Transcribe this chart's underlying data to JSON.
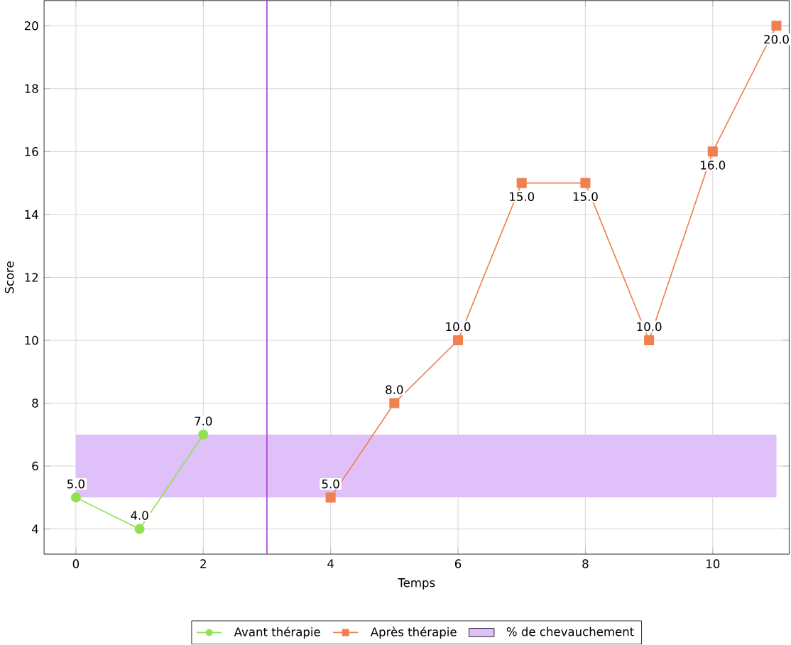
{
  "chart_data": {
    "type": "line",
    "xlabel": "Temps",
    "ylabel": "Score",
    "series": [
      {
        "name": "Avant thérapie",
        "color": "#90e050",
        "marker": "circle",
        "x": [
          0,
          1,
          2
        ],
        "values": [
          5,
          4,
          7
        ],
        "value_labels": [
          "5.0",
          "4.0",
          "7.0"
        ]
      },
      {
        "name": "Après thérapie",
        "color": "#f08050",
        "marker": "square",
        "x": [
          4,
          5,
          6,
          7,
          8,
          9,
          10,
          11
        ],
        "values": [
          5,
          8,
          10,
          15,
          15,
          10,
          16,
          20
        ],
        "value_labels": [
          "5.0",
          "8.0",
          "10.0",
          "15.0",
          "15.0",
          "10.0",
          "16.0",
          "20.0"
        ]
      }
    ],
    "bands": [
      {
        "axis": "y",
        "from": 5,
        "to": 7,
        "label": "% de chevauchement",
        "color": "#e0c0f8"
      }
    ],
    "ref_lines": [
      {
        "axis": "x",
        "value": 3,
        "color": "#a040e0"
      }
    ],
    "xlim": [
      -0.5,
      11.2
    ],
    "ylim": [
      3.2,
      20.8
    ],
    "xticks": [
      0,
      2,
      4,
      6,
      8,
      10
    ],
    "yticks": [
      4,
      6,
      8,
      10,
      12,
      14,
      16,
      18,
      20
    ],
    "grid": true,
    "legend": "bottom"
  }
}
